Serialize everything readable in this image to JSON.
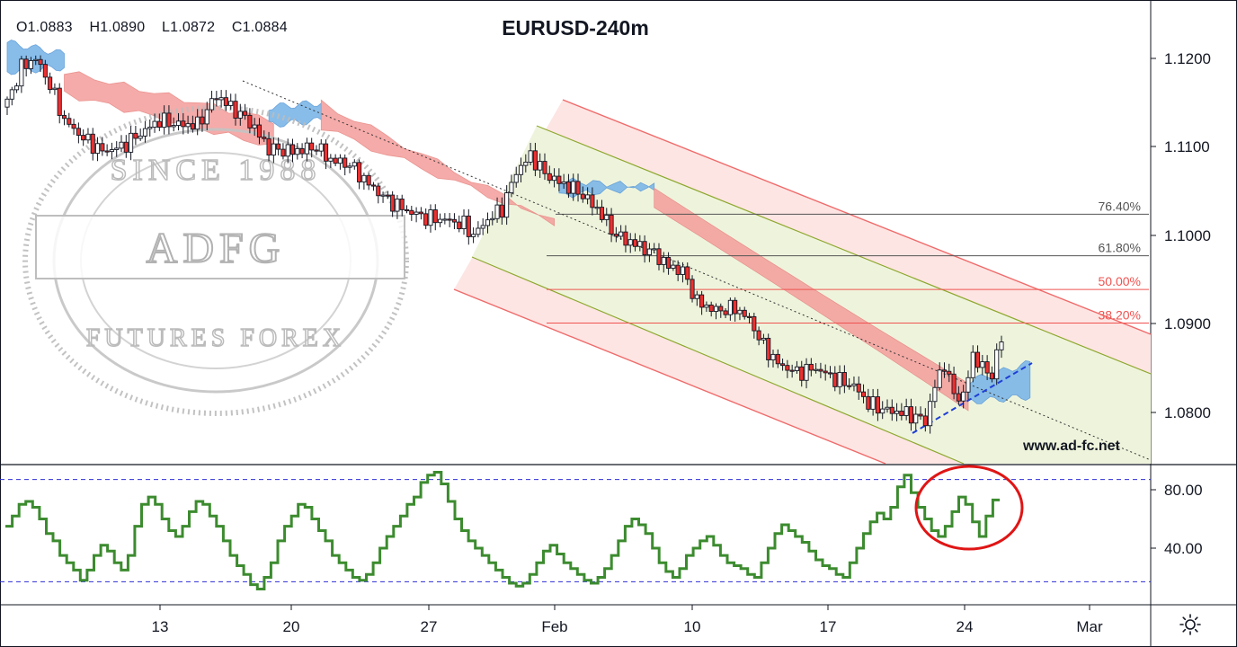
{
  "header": {
    "ohlc": {
      "open": "O1.0883",
      "high": "H1.0890",
      "low": "L1.0872",
      "close": "C1.0884"
    },
    "title": "EURUSD-240m"
  },
  "watermark": {
    "website": "www.ad-fc.net",
    "stamp_text": [
      "SINCE 1988",
      "ADFG",
      "FUTURES FOREX"
    ]
  },
  "colors": {
    "up_candle": "#ffffff",
    "down_candle": "#ef2f2f",
    "ichimoku_bear": "#f4a3a0",
    "ichimoku_bull": "#7cb6e8",
    "channel_inner": "#eef4dc",
    "channel_outer": "#fde5e3",
    "oscillator": "#3c8b2f",
    "level_line": "#2f2fd6",
    "highlight_circle": "#e01515"
  },
  "settings_icon": "gear-icon",
  "chart_data": [
    {
      "type": "candlestick",
      "title": "EURUSD-240m",
      "y_ticks": [
        "1.1200",
        "1.1100",
        "1.1000",
        "1.0900",
        "1.0800"
      ],
      "x_ticks": [
        "13",
        "20",
        "27",
        "Feb",
        "10",
        "17",
        "24",
        "Mar"
      ],
      "ylim": [
        1.073,
        1.1265
      ],
      "fib_levels": [
        {
          "label": "76.40%",
          "value": 1.1024
        },
        {
          "label": "61.80%",
          "value": 1.0977
        },
        {
          "label": "50.00%",
          "value": 1.0939
        },
        {
          "label": "38.20%",
          "value": 1.0901
        }
      ],
      "close_path": [
        [
          0,
          1.115
        ],
        [
          3,
          1.119
        ],
        [
          6,
          1.12
        ],
        [
          9,
          1.117
        ],
        [
          12,
          1.113
        ],
        [
          16,
          1.111
        ],
        [
          20,
          1.1095
        ],
        [
          24,
          1.11
        ],
        [
          28,
          1.1115
        ],
        [
          32,
          1.113
        ],
        [
          36,
          1.1125
        ],
        [
          40,
          1.1125
        ],
        [
          44,
          1.1158
        ],
        [
          47,
          1.1145
        ],
        [
          51,
          1.1128
        ],
        [
          55,
          1.1098
        ],
        [
          60,
          1.1095
        ],
        [
          65,
          1.11
        ],
        [
          68,
          1.1085
        ],
        [
          72,
          1.108
        ],
        [
          76,
          1.1058
        ],
        [
          80,
          1.104
        ],
        [
          84,
          1.1028
        ],
        [
          88,
          1.102
        ],
        [
          92,
          1.1018
        ],
        [
          96,
          1.1012
        ],
        [
          98,
          1.1
        ],
        [
          101,
          1.1018
        ],
        [
          104,
          1.103
        ],
        [
          107,
          1.1072
        ],
        [
          110,
          1.109
        ],
        [
          113,
          1.107
        ],
        [
          116,
          1.106
        ],
        [
          120,
          1.105
        ],
        [
          124,
          1.103
        ],
        [
          128,
          1.1
        ],
        [
          132,
          1.099
        ],
        [
          136,
          1.098
        ],
        [
          139,
          1.0965
        ],
        [
          142,
          1.096
        ],
        [
          145,
          1.0925
        ],
        [
          149,
          1.0915
        ],
        [
          153,
          1.0918
        ],
        [
          156,
          1.0905
        ],
        [
          159,
          1.0875
        ],
        [
          162,
          1.0855
        ],
        [
          166,
          1.0845
        ],
        [
          170,
          1.085
        ],
        [
          174,
          1.0838
        ],
        [
          178,
          1.083
        ],
        [
          181,
          1.081
        ],
        [
          185,
          1.0802
        ],
        [
          188,
          1.08
        ],
        [
          191,
          1.0795
        ],
        [
          193,
          1.079
        ],
        [
          195,
          1.083
        ],
        [
          197,
          1.0855
        ],
        [
          199,
          1.082
        ],
        [
          201,
          1.0818
        ],
        [
          203,
          1.0865
        ],
        [
          205,
          1.085
        ],
        [
          207,
          1.0843
        ],
        [
          209,
          1.0884
        ]
      ],
      "ichimoku_cloud": [
        {
          "start": 0,
          "end": 12,
          "top": [
            1.1218,
            1.1205
          ],
          "bottom": [
            1.1185,
            1.119
          ],
          "kind": "bullish"
        },
        {
          "start": 12,
          "end": 56,
          "top": [
            1.1185,
            1.113
          ],
          "bottom": [
            1.116,
            1.11
          ],
          "kind": "bearish"
        },
        {
          "start": 55,
          "end": 66,
          "top": [
            1.1145,
            1.115
          ],
          "bottom": [
            1.1125,
            1.113
          ],
          "kind": "bullish"
        },
        {
          "start": 66,
          "end": 115,
          "top": [
            1.115,
            1.1015
          ],
          "bottom": [
            1.1122,
            1.1015
          ],
          "kind": "bearish"
        },
        {
          "start": 116,
          "end": 136,
          "top": [
            1.1062,
            1.1055
          ],
          "bottom": [
            1.1045,
            1.1055
          ],
          "kind": "bullish"
        },
        {
          "start": 136,
          "end": 202,
          "top": [
            1.1055,
            1.0835
          ],
          "bottom": [
            1.103,
            1.08
          ],
          "kind": "bearish"
        },
        {
          "start": 202,
          "end": 215,
          "top": [
            1.0835,
            1.0856
          ],
          "bottom": [
            1.0812,
            1.0818
          ],
          "kind": "bullish"
        }
      ]
    },
    {
      "type": "line",
      "y_ticks": [
        "80.00",
        "40.00"
      ],
      "ylim": [
        -3,
        108
      ],
      "upper_level": 87,
      "lower_level": 17,
      "values": [
        55,
        62,
        70,
        72,
        68,
        60,
        50,
        45,
        35,
        30,
        25,
        18,
        25,
        35,
        42,
        38,
        30,
        25,
        35,
        55,
        70,
        75,
        70,
        60,
        52,
        48,
        55,
        65,
        72,
        70,
        62,
        55,
        45,
        35,
        28,
        22,
        15,
        12,
        20,
        30,
        45,
        55,
        62,
        70,
        68,
        60,
        52,
        45,
        35,
        30,
        25,
        20,
        18,
        22,
        30,
        40,
        48,
        55,
        62,
        70,
        75,
        85,
        90,
        92,
        84,
        72,
        60,
        52,
        45,
        40,
        35,
        30,
        25,
        20,
        16,
        14,
        16,
        22,
        30,
        38,
        42,
        36,
        30,
        26,
        22,
        18,
        16,
        20,
        26,
        35,
        45,
        55,
        60,
        56,
        50,
        40,
        30,
        24,
        20,
        26,
        35,
        40,
        45,
        48,
        42,
        35,
        30,
        28,
        26,
        22,
        20,
        30,
        40,
        50,
        56,
        52,
        48,
        44,
        38,
        32,
        28,
        26,
        22,
        20,
        30,
        40,
        50,
        58,
        64,
        60,
        68,
        82,
        90,
        78,
        68,
        60,
        52,
        48,
        55,
        65,
        75,
        70,
        58,
        48,
        62,
        73,
        73
      ]
    }
  ]
}
